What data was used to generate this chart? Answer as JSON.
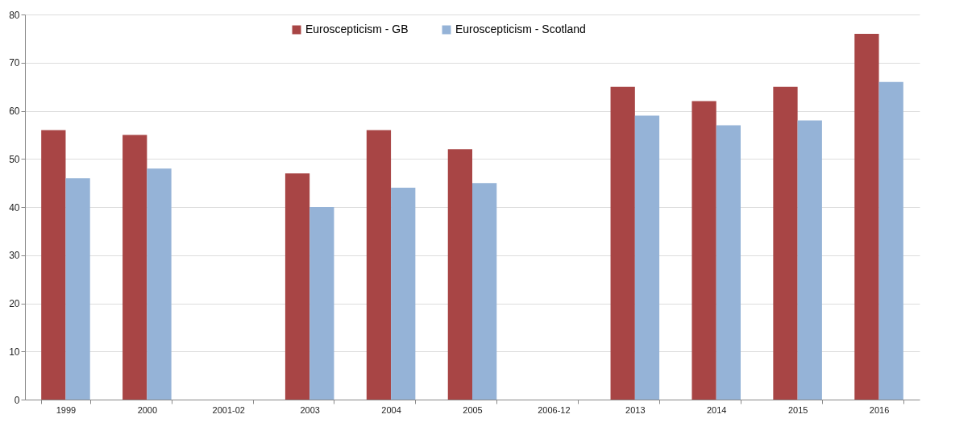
{
  "chart_data": {
    "type": "bar",
    "categories": [
      "1999",
      "2000",
      "2001-02",
      "2003",
      "2004",
      "2005",
      "2006-12",
      "2013",
      "2014",
      "2015",
      "2016"
    ],
    "series": [
      {
        "name": "Euroscepticism - GB",
        "color": "#a84545",
        "values": [
          56,
          55,
          null,
          47,
          56,
          52,
          null,
          65,
          62,
          65,
          76
        ]
      },
      {
        "name": "Euroscepticism - Scotland",
        "color": "#95b3d7",
        "values": [
          46,
          48,
          null,
          40,
          44,
          45,
          null,
          59,
          57,
          58,
          66
        ]
      }
    ],
    "ylim": [
      0,
      80
    ],
    "yticks": [
      0,
      10,
      20,
      30,
      40,
      50,
      60,
      70,
      80
    ],
    "grid": "y",
    "legend": "top"
  }
}
